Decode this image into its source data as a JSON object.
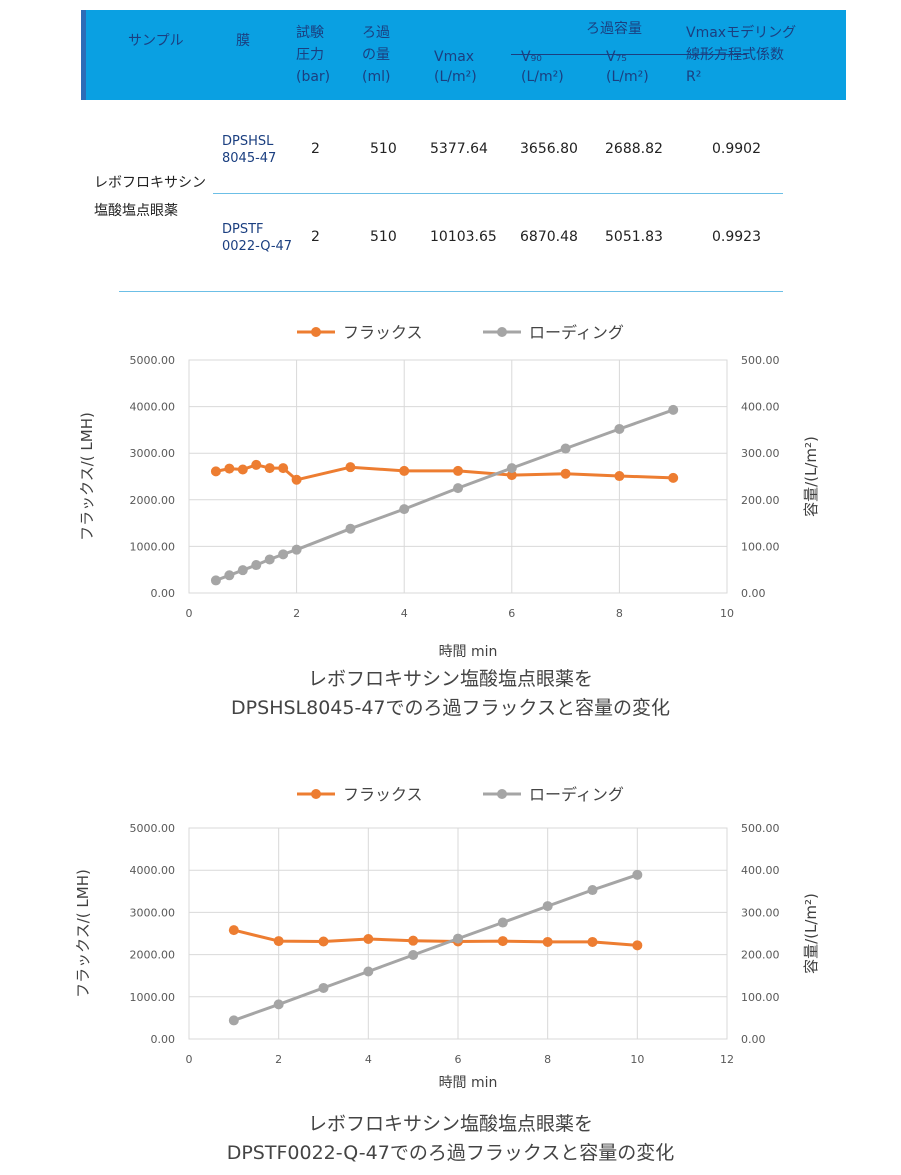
{
  "table": {
    "headers": {
      "sample": "サンプル",
      "membrane": "膜",
      "pressure": [
        "試験",
        "圧力",
        "(bar)"
      ],
      "volume": [
        "ろ過",
        "の量",
        "(ml)"
      ],
      "capacity_group": "ろ過容量",
      "vmax": [
        "Vmax",
        "(L/m²)"
      ],
      "v90": [
        "V₉₀",
        "(L/m²)"
      ],
      "v75": [
        "V₇₅",
        "(L/m²)"
      ],
      "r2": [
        "Vmaxモデリング",
        "線形方程式係数",
        "R²"
      ]
    },
    "sample_name": [
      "レボフロキサシン",
      "塩酸塩点眼薬"
    ],
    "rows": [
      {
        "membrane": [
          "DPSHSL",
          "8045-47"
        ],
        "pressure": "2",
        "volume": "510",
        "vmax": "5377.64",
        "v90": "3656.80",
        "v75": "2688.82",
        "r2": "0.9902"
      },
      {
        "membrane": [
          "DPSTF",
          "0022-Q-47"
        ],
        "pressure": "2",
        "volume": "510",
        "vmax": "10103.65",
        "v90": "6870.48",
        "v75": "5051.83",
        "r2": "0.9923"
      }
    ]
  },
  "colors": {
    "flux": "#ed7d31",
    "loading": "#a5a5a5",
    "header_bg": "#0aa0e2",
    "header_text": "#1b3f80"
  },
  "chart_data": [
    {
      "type": "line",
      "legend": [
        "フラックス",
        "ローディング"
      ],
      "legend_position": "top",
      "xlabel": "時間 min",
      "ylabel": "フラックス/( LMH)",
      "y2label": "容量/(L/m²)",
      "xlim": [
        0,
        10
      ],
      "xticks": [
        "0",
        "2",
        "4",
        "6",
        "8",
        "10"
      ],
      "ylim": [
        0,
        5000
      ],
      "yticks": [
        "0.00",
        "1000.00",
        "2000.00",
        "3000.00",
        "4000.00",
        "5000.00"
      ],
      "y2lim": [
        0,
        500
      ],
      "y2ticks": [
        "0.00",
        "100.00",
        "200.00",
        "300.00",
        "400.00",
        "500.00"
      ],
      "grid": true,
      "series": [
        {
          "name": "フラックス",
          "axis": "left",
          "x": [
            0.5,
            0.75,
            1,
            1.25,
            1.5,
            1.75,
            2,
            3,
            4,
            5,
            6,
            7,
            8,
            9
          ],
          "values": [
            2610,
            2670,
            2650,
            2750,
            2680,
            2680,
            2430,
            2700,
            2620,
            2620,
            2530,
            2560,
            2510,
            2470
          ]
        },
        {
          "name": "ローディング",
          "axis": "right",
          "x": [
            0.5,
            0.75,
            1,
            1.25,
            1.5,
            1.75,
            2,
            3,
            4,
            5,
            6,
            7,
            8,
            9
          ],
          "values": [
            27,
            38,
            49,
            60,
            72,
            83,
            93,
            138,
            180,
            225,
            268,
            310,
            352,
            393
          ]
        }
      ],
      "caption": [
        "レボフロキサシン塩酸塩点眼薬を",
        "DPSHSL8045-47でのろ過フラックスと容量の変化"
      ]
    },
    {
      "type": "line",
      "legend": [
        "フラックス",
        "ローディング"
      ],
      "legend_position": "top",
      "xlabel": "時間 min",
      "ylabel": "フラックス/( LMH)",
      "y2label": "容量/(L/m²)",
      "xlim": [
        0,
        12
      ],
      "xticks": [
        "0",
        "2",
        "4",
        "6",
        "8",
        "10",
        "12"
      ],
      "ylim": [
        0,
        5000
      ],
      "yticks": [
        "0.00",
        "1000.00",
        "2000.00",
        "3000.00",
        "4000.00",
        "5000.00"
      ],
      "y2lim": [
        0,
        500
      ],
      "y2ticks": [
        "0.00",
        "100.00",
        "200.00",
        "300.00",
        "400.00",
        "500.00"
      ],
      "grid": true,
      "series": [
        {
          "name": "フラックス",
          "axis": "left",
          "x": [
            1,
            2,
            3,
            4,
            5,
            6,
            7,
            8,
            9,
            10
          ],
          "values": [
            2580,
            2320,
            2310,
            2370,
            2330,
            2310,
            2320,
            2300,
            2300,
            2220
          ]
        },
        {
          "name": "ローディング",
          "axis": "right",
          "x": [
            1,
            2,
            3,
            4,
            5,
            6,
            7,
            8,
            9,
            10
          ],
          "values": [
            44,
            82,
            121,
            160,
            199,
            238,
            276,
            315,
            353,
            389
          ]
        }
      ],
      "caption": [
        "レボフロキサシン塩酸塩点眼薬を",
        "DPSTF0022-Q-47でのろ過フラックスと容量の変化"
      ]
    }
  ]
}
